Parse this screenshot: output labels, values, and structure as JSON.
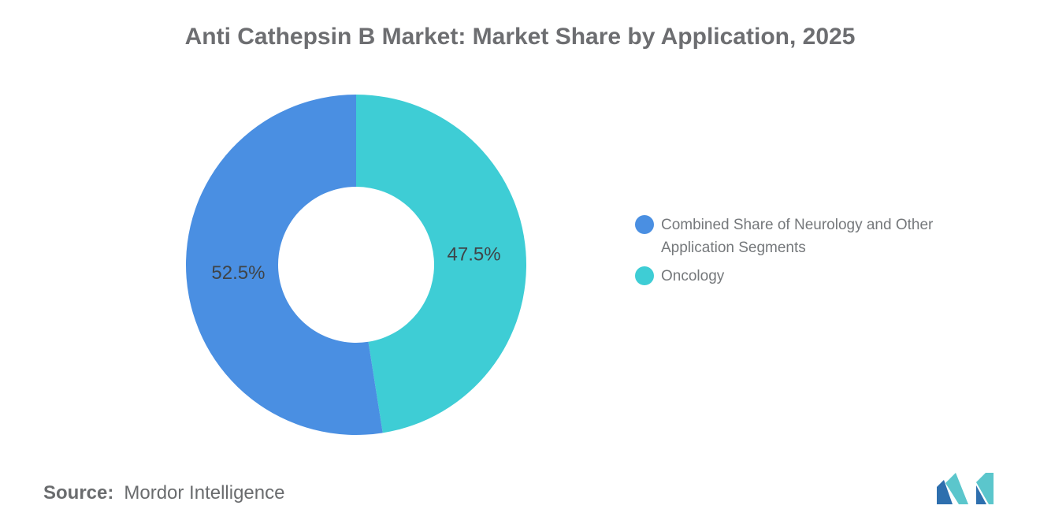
{
  "chart_data": {
    "type": "pie",
    "donut": true,
    "title": "Anti Cathepsin B Market: Market Share by Application, 2025",
    "slices": [
      {
        "id": "combined-neurology-other",
        "label": "Combined Share of Neurology and Other Application Segments",
        "value": 52.5,
        "display": "52.5%",
        "color": "#4A8FE2"
      },
      {
        "id": "oncology",
        "label": "Oncology",
        "value": 47.5,
        "display": "47.5%",
        "color": "#3ECDD5"
      }
    ],
    "draw_order": [
      1,
      0
    ],
    "start_angle": "12-oclock",
    "direction": "clockwise",
    "legend_position": "right",
    "inner_radius_ratio": 0.46,
    "label_color": "#3F4448",
    "title_color": "#6D6E71"
  },
  "footer": {
    "source_label": "Source:",
    "source_value": "Mordor Intelligence"
  },
  "logo": {
    "name": "mordor-intelligence-logo",
    "teal": "#5BC6CC",
    "blue": "#2E6FAE"
  }
}
